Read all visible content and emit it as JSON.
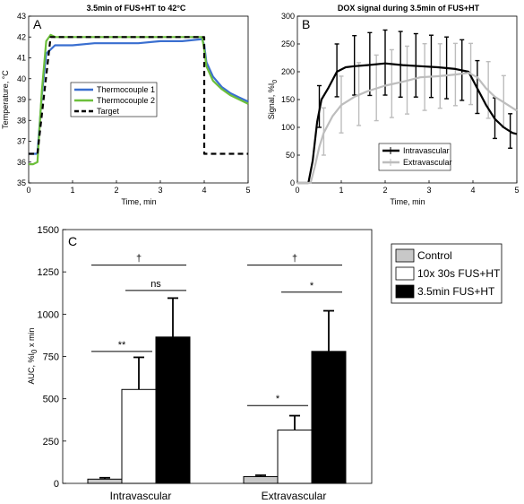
{
  "chart_data": [
    {
      "type": "line",
      "panel": "A",
      "title": "3.5min of FUS+HT to 42°C",
      "xlabel": "Time, min",
      "ylabel": "Temperature, °C",
      "xlim": [
        0,
        5
      ],
      "ylim": [
        35,
        43
      ],
      "xticks": [
        "0",
        "1",
        "2",
        "3",
        "4",
        "5"
      ],
      "yticks": [
        "35",
        "36",
        "37",
        "38",
        "39",
        "40",
        "41",
        "42",
        "43"
      ],
      "legend_position": "center-left",
      "series": [
        {
          "name": "Thermocouple 1",
          "color": "#3a6fd0",
          "dash": "solid",
          "x": [
            0,
            0.1,
            0.2,
            0.3,
            0.4,
            0.5,
            0.6,
            0.8,
            1.0,
            1.5,
            2.0,
            2.5,
            3.0,
            3.5,
            3.95,
            4.0,
            4.05,
            4.2,
            4.4,
            4.6,
            4.8,
            5.0
          ],
          "y": [
            36.4,
            36.4,
            36.4,
            39.2,
            41.2,
            41.4,
            41.6,
            41.6,
            41.6,
            41.7,
            41.7,
            41.7,
            41.8,
            41.8,
            41.9,
            41.6,
            40.8,
            40.1,
            39.6,
            39.3,
            39.1,
            38.9
          ]
        },
        {
          "name": "Thermocouple 2",
          "color": "#6cbf3a",
          "dash": "solid",
          "x": [
            0,
            0.1,
            0.2,
            0.3,
            0.4,
            0.5,
            0.6,
            0.8,
            1.0,
            1.5,
            2.0,
            2.5,
            3.0,
            3.5,
            3.95,
            4.0,
            4.05,
            4.2,
            4.4,
            4.6,
            4.8,
            5.0
          ],
          "y": [
            35.9,
            35.9,
            36.0,
            39.4,
            41.8,
            42.1,
            42.0,
            42.0,
            42.0,
            42.0,
            42.0,
            42.0,
            42.0,
            42.0,
            42.0,
            41.4,
            40.6,
            39.9,
            39.5,
            39.2,
            39.0,
            38.8
          ]
        },
        {
          "name": "Target",
          "color": "#000000",
          "dash": "dashed",
          "x": [
            0,
            0.2,
            0.5,
            4.0,
            4.0,
            5.0
          ],
          "y": [
            36.4,
            36.4,
            42.0,
            42.0,
            36.4,
            36.4
          ]
        }
      ]
    },
    {
      "type": "line",
      "panel": "B",
      "title": "DOX signal during 3.5min of FUS+HT",
      "xlabel": "Time, min",
      "ylabel": "Signal, %I",
      "ylabel_sub": "0",
      "xlim": [
        0,
        5
      ],
      "ylim": [
        0,
        300
      ],
      "xticks": [
        "0",
        "1",
        "2",
        "3",
        "4",
        "5"
      ],
      "yticks": [
        "0",
        "50",
        "100",
        "150",
        "200",
        "250",
        "300"
      ],
      "legend_position": "bottom-center",
      "series": [
        {
          "name": "Intravascular",
          "color": "#000000",
          "x": [
            0,
            0.25,
            0.35,
            0.45,
            0.55,
            0.7,
            0.9,
            1.1,
            1.3,
            1.6,
            2.0,
            2.4,
            2.8,
            3.2,
            3.6,
            3.9,
            4.1,
            4.3,
            4.5,
            4.7,
            4.9,
            5.0
          ],
          "y": [
            0,
            0,
            40,
            110,
            150,
            170,
            200,
            208,
            210,
            212,
            215,
            212,
            210,
            208,
            205,
            200,
            170,
            140,
            115,
            100,
            90,
            88
          ],
          "err_x": [
            0.5,
            0.9,
            1.3,
            1.65,
            2.0,
            2.35,
            2.7,
            3.05,
            3.4,
            3.75,
            4.1,
            4.5,
            4.85
          ],
          "err_lo": [
            30,
            45,
            52,
            55,
            57,
            58,
            56,
            55,
            55,
            54,
            45,
            35,
            30
          ],
          "err_hi": [
            45,
            50,
            55,
            58,
            60,
            60,
            58,
            57,
            56,
            55,
            50,
            38,
            32
          ]
        },
        {
          "name": "Extravascular",
          "color": "#bdbdbd",
          "x": [
            0,
            0.3,
            0.4,
            0.5,
            0.6,
            0.8,
            1.0,
            1.3,
            1.6,
            2.0,
            2.4,
            2.8,
            3.2,
            3.6,
            3.9,
            4.1,
            4.3,
            4.5,
            4.7,
            4.9,
            5.0
          ],
          "y": [
            0,
            0,
            30,
            65,
            90,
            120,
            140,
            155,
            165,
            175,
            182,
            190,
            192,
            195,
            198,
            190,
            170,
            155,
            145,
            135,
            130
          ],
          "err_x": [
            0.6,
            1.0,
            1.4,
            1.8,
            2.15,
            2.5,
            2.9,
            3.25,
            3.6,
            3.95,
            4.35,
            4.7
          ],
          "err_lo": [
            40,
            50,
            55,
            58,
            60,
            60,
            60,
            58,
            56,
            55,
            50,
            45
          ],
          "err_hi": [
            45,
            52,
            58,
            60,
            62,
            62,
            60,
            58,
            56,
            55,
            52,
            48
          ]
        }
      ]
    },
    {
      "type": "bar",
      "panel": "C",
      "ylabel": "AUC, %I",
      "ylabel_sub": "0",
      "ylabel_suffix": " x min",
      "ylim": [
        0,
        1500
      ],
      "yticks": [
        "0",
        "250",
        "500",
        "750",
        "1000",
        "1250",
        "1500"
      ],
      "categories": [
        "Intravascular",
        "Extravascular"
      ],
      "legend_position": "right",
      "series": [
        {
          "name": "Control",
          "color": "#c8c8c8",
          "values": [
            25,
            40
          ],
          "errors": [
            8,
            8
          ]
        },
        {
          "name": "10x 30s FUS+HT",
          "color": "#ffffff",
          "values": [
            555,
            315
          ],
          "errors": [
            190,
            85
          ]
        },
        {
          "name": "3.5min FUS+HT",
          "color": "#000000",
          "values": [
            865,
            780
          ],
          "errors": [
            230,
            240
          ]
        }
      ],
      "significance": [
        {
          "category": 0,
          "from": 0,
          "to": 2,
          "label": "†",
          "y": 1290
        },
        {
          "category": 0,
          "from": 1,
          "to": 2,
          "label": "ns",
          "y": 1140
        },
        {
          "category": 0,
          "from": 0,
          "to": 1,
          "label": "**",
          "y": 780
        },
        {
          "category": 1,
          "from": 0,
          "to": 2,
          "label": "†",
          "y": 1290
        },
        {
          "category": 1,
          "from": 1,
          "to": 2,
          "label": "*",
          "y": 1130
        },
        {
          "category": 1,
          "from": 0,
          "to": 1,
          "label": "*",
          "y": 460
        }
      ]
    }
  ]
}
